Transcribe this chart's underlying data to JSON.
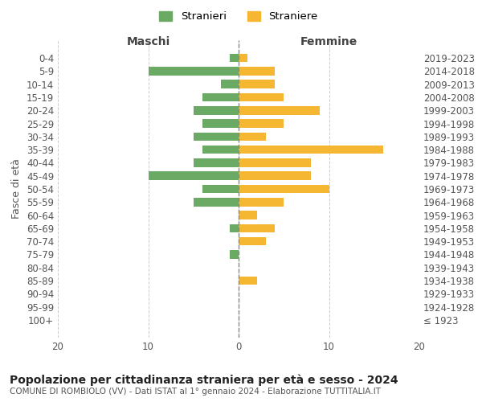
{
  "age_groups": [
    "100+",
    "95-99",
    "90-94",
    "85-89",
    "80-84",
    "75-79",
    "70-74",
    "65-69",
    "60-64",
    "55-59",
    "50-54",
    "45-49",
    "40-44",
    "35-39",
    "30-34",
    "25-29",
    "20-24",
    "15-19",
    "10-14",
    "5-9",
    "0-4"
  ],
  "birth_years": [
    "≤ 1923",
    "1924-1928",
    "1929-1933",
    "1934-1938",
    "1939-1943",
    "1944-1948",
    "1949-1953",
    "1954-1958",
    "1959-1963",
    "1964-1968",
    "1969-1973",
    "1974-1978",
    "1979-1983",
    "1984-1988",
    "1989-1993",
    "1994-1998",
    "1999-2003",
    "2004-2008",
    "2009-2013",
    "2014-2018",
    "2019-2023"
  ],
  "maschi": [
    0,
    0,
    0,
    0,
    0,
    1,
    0,
    1,
    0,
    5,
    4,
    10,
    5,
    4,
    5,
    4,
    5,
    4,
    2,
    10,
    1
  ],
  "femmine": [
    0,
    0,
    0,
    2,
    0,
    0,
    3,
    4,
    2,
    5,
    10,
    8,
    8,
    16,
    3,
    5,
    9,
    5,
    4,
    4,
    1
  ],
  "male_color": "#6aaa64",
  "female_color": "#f5b731",
  "title": "Popolazione per cittadinanza straniera per età e sesso - 2024",
  "subtitle": "COMUNE DI ROMBIOLO (VV) - Dati ISTAT al 1° gennaio 2024 - Elaborazione TUTTITALIA.IT",
  "xlabel_left": "Maschi",
  "xlabel_right": "Femmine",
  "ylabel_left": "Fasce di età",
  "legend_male": "Stranieri",
  "legend_female": "Straniere",
  "xlim": 20,
  "background_color": "#ffffff",
  "grid_color": "#cccccc"
}
